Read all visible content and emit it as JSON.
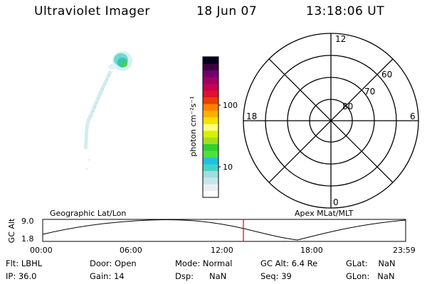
{
  "header": {
    "title": "Ultraviolet Imager",
    "date": "18 Jun 07",
    "time": "13:18:06 UT"
  },
  "colorbar": {
    "label": "photon cm⁻²s⁻¹",
    "ticks": [
      "100",
      "10"
    ],
    "colors": [
      "#ffffff",
      "#e8f0f5",
      "#c8e4ec",
      "#a0dede",
      "#40d4c8",
      "#20c0e0",
      "#50e040",
      "#30d030",
      "#a0e020",
      "#d8f000",
      "#ffff80",
      "#f8e000",
      "#ffb000",
      "#ff8000",
      "#e84000",
      "#e01030",
      "#c80050",
      "#a00060",
      "#700070",
      "#400040",
      "#000020"
    ]
  },
  "polar": {
    "labels_mlt": [
      "12",
      "18",
      "6",
      "0"
    ],
    "labels_lat": [
      "60",
      "70",
      "80"
    ]
  },
  "timeline": {
    "left_title": "Geographic Lat/Lon",
    "right_title": "Apex MLat/MLT",
    "y_label": "GC Alt",
    "y_ticks": [
      "9.0",
      "1.8"
    ],
    "x_ticks": [
      "00:00",
      "06:00",
      "12:00",
      "18:00",
      "23:59"
    ],
    "marker_color": "#e00000"
  },
  "status": {
    "row1": [
      {
        "label": "Flt:",
        "value": "LBHL"
      },
      {
        "label": "Door:",
        "value": "Open"
      },
      {
        "label": "Mode:",
        "value": "Normal"
      },
      {
        "label": "GC Alt:",
        "value": "6.4 Re"
      },
      {
        "label": "GLat:",
        "value": "NaN"
      }
    ],
    "row2": [
      {
        "label": "IP:",
        "value": "36.0"
      },
      {
        "label": "Gain:",
        "value": "14"
      },
      {
        "label": "Dsp:",
        "value": "NaN"
      },
      {
        "label": "Seq:",
        "value": "39"
      },
      {
        "label": "GLon:",
        "value": "NaN"
      }
    ]
  }
}
